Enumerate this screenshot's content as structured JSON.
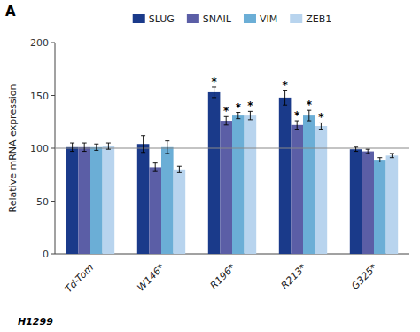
{
  "chart_data": {
    "type": "bar",
    "categories": [
      "Td-Tom",
      "W146*",
      "R196*",
      "R213*",
      "G325*"
    ],
    "series": [
      {
        "name": "SLUG",
        "color": "#1a3a8a",
        "values": [
          101,
          104,
          153,
          148,
          99
        ],
        "errors": [
          4,
          8,
          5,
          7,
          2
        ]
      },
      {
        "name": "SNAIL",
        "color": "#5b5ea6",
        "values": [
          101,
          82,
          126,
          122,
          97
        ],
        "errors": [
          4,
          4,
          4,
          4,
          2
        ]
      },
      {
        "name": "VIM",
        "color": "#6baed6",
        "values": [
          101,
          101,
          131,
          131,
          89
        ],
        "errors": [
          3,
          6,
          3,
          5,
          2
        ]
      },
      {
        "name": "ZEB1",
        "color": "#b8d4ee",
        "values": [
          102,
          80,
          131,
          121,
          93
        ],
        "errors": [
          3,
          3,
          4,
          3,
          2
        ]
      }
    ],
    "ylabel": "Relative mRNA expression",
    "xlabel": "H1299",
    "ylim": [
      0,
      200
    ],
    "yticks": [
      0,
      50,
      100,
      150,
      200
    ],
    "hline": 100,
    "grid": false,
    "legend": "top",
    "annotations": [
      {
        "text": "A"
      },
      {
        "text": "*",
        "category": "R196*",
        "series": "SLUG"
      },
      {
        "text": "*",
        "category": "R196*",
        "series": "SNAIL"
      },
      {
        "text": "*",
        "category": "R196*",
        "series": "VIM"
      },
      {
        "text": "*",
        "category": "R196*",
        "series": "ZEB1"
      },
      {
        "text": "*",
        "category": "R213*",
        "series": "SLUG"
      },
      {
        "text": "*",
        "category": "R213*",
        "series": "SNAIL"
      },
      {
        "text": "*",
        "category": "R213*",
        "series": "VIM"
      },
      {
        "text": "*",
        "category": "R213*",
        "series": "ZEB1"
      }
    ]
  }
}
